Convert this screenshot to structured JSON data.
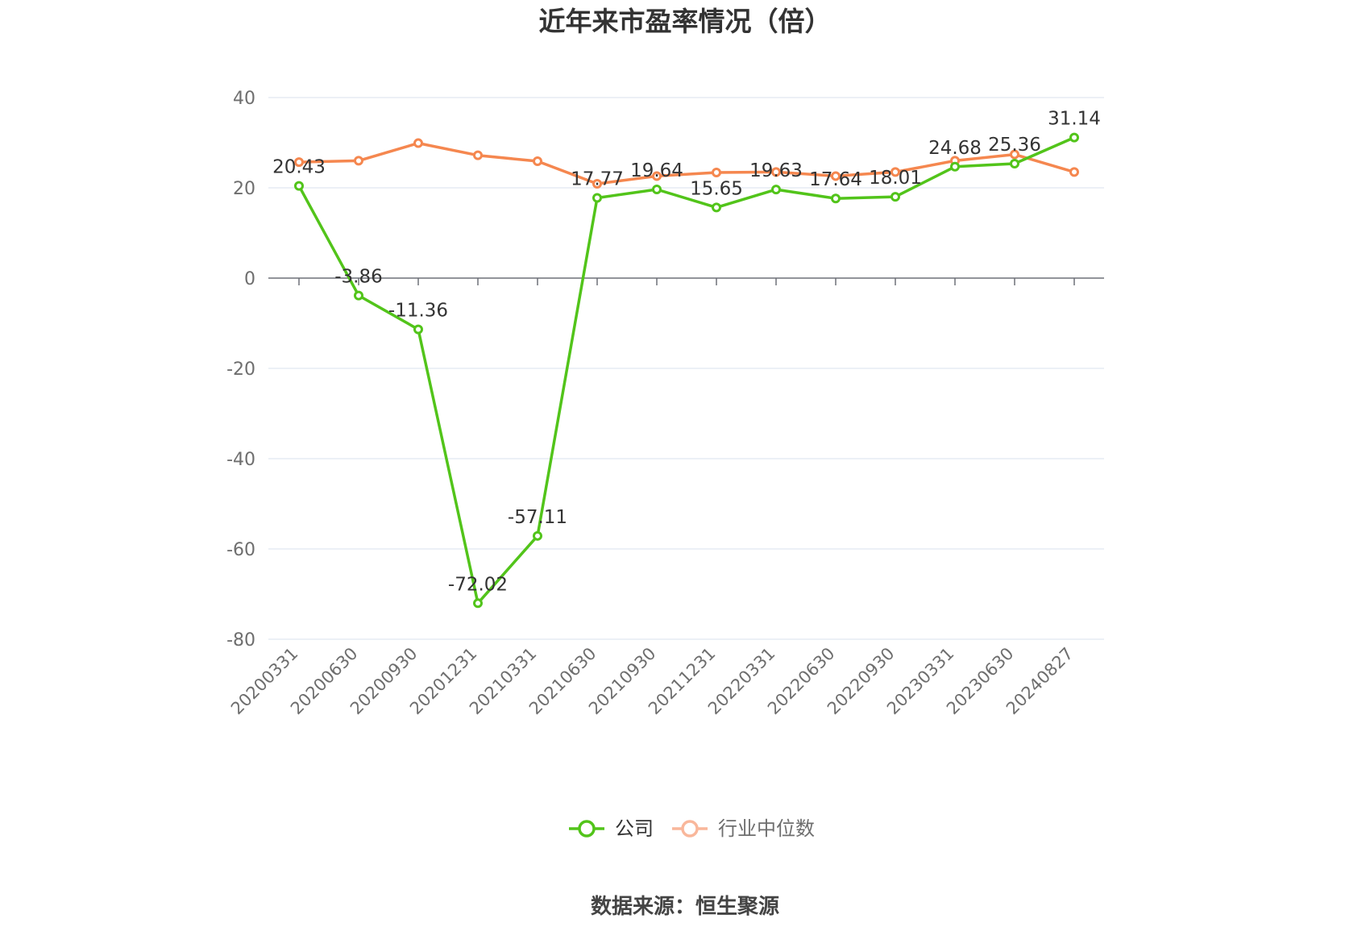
{
  "chart_data": {
    "type": "line",
    "title": "近年来市盈率情况（倍）",
    "categories": [
      "20200331",
      "20200630",
      "20200930",
      "20201231",
      "20210331",
      "20210630",
      "20210930",
      "20211231",
      "20220331",
      "20220630",
      "20220930",
      "20230331",
      "20230630",
      "20240827"
    ],
    "series": [
      {
        "name": "公司",
        "color": "#52c41a",
        "values": [
          20.43,
          -3.86,
          -11.36,
          -72.02,
          -57.11,
          17.77,
          19.64,
          15.65,
          19.63,
          17.64,
          18.01,
          24.68,
          25.36,
          31.14
        ],
        "labels": [
          "20.43",
          "-3.86",
          "-11.36",
          "-72.02",
          "-57.11",
          "17.77",
          "19.64",
          "15.65",
          "19.63",
          "17.64",
          "18.01",
          "24.68",
          "25.36",
          "31.14"
        ]
      },
      {
        "name": "行业中位数",
        "color": "#f5874f",
        "values": [
          25.7,
          26.0,
          29.9,
          27.2,
          25.9,
          20.9,
          22.6,
          23.4,
          23.5,
          22.6,
          23.5,
          26.0,
          27.4,
          23.5
        ]
      }
    ],
    "y_ticks": [
      "40",
      "20",
      "0",
      "-20",
      "-40",
      "-60",
      "-80"
    ],
    "ylim": [
      -80,
      40
    ],
    "grid": true,
    "legend_position": "bottom-center"
  },
  "source": "数据来源：恒生聚源"
}
